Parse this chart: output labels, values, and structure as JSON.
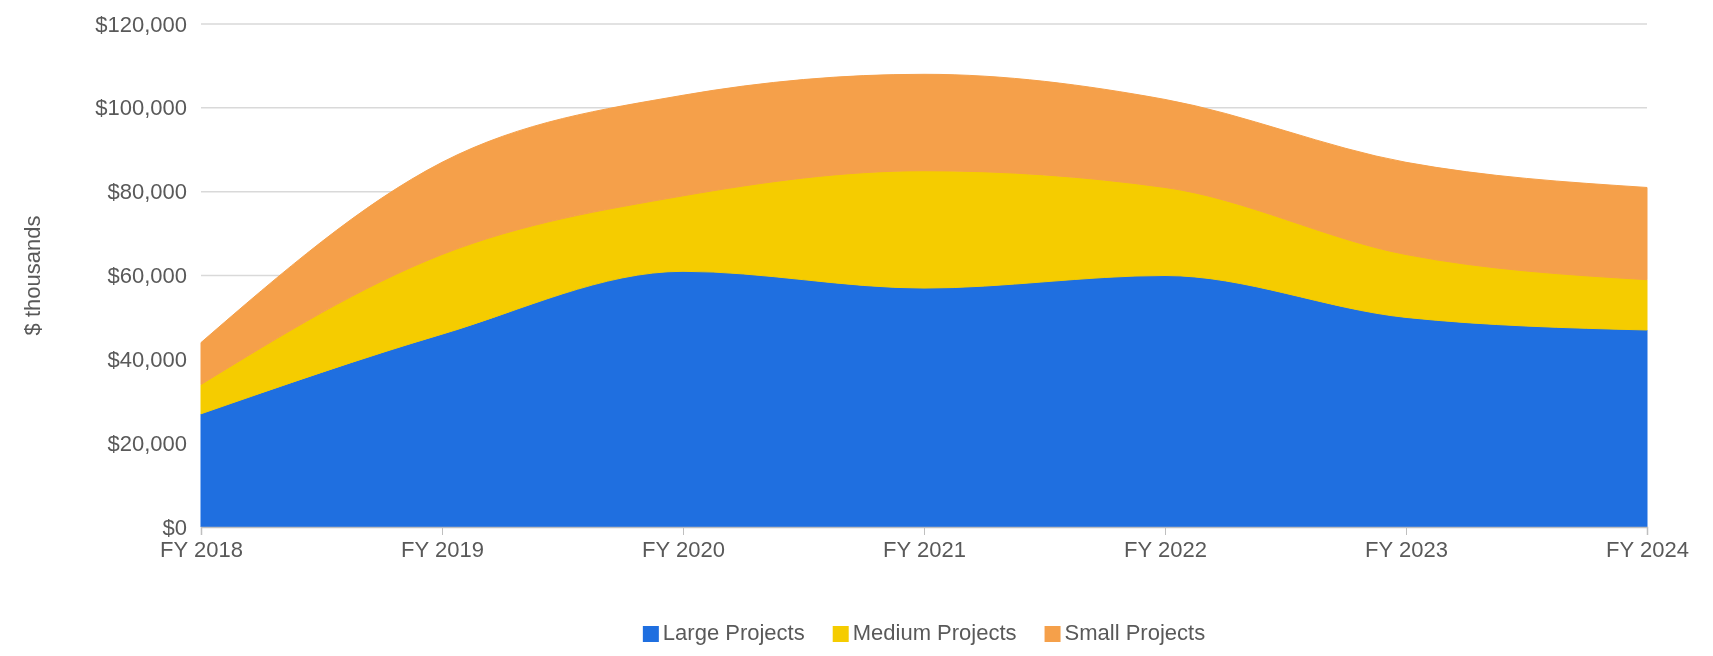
{
  "chart_data": {
    "type": "area",
    "stacked": true,
    "ylabel": "$ thousands",
    "categories": [
      "FY 2018",
      "FY 2019",
      "FY 2020",
      "FY 2021",
      "FY 2022",
      "FY 2023",
      "FY 2024"
    ],
    "series": [
      {
        "name": "Large Projects",
        "color": "#1f6fe0",
        "values": [
          27000,
          46000,
          61000,
          57000,
          60000,
          50000,
          47000
        ]
      },
      {
        "name": "Medium Projects",
        "color": "#f5cc00",
        "values": [
          7000,
          19000,
          18000,
          28000,
          21000,
          15000,
          12000
        ]
      },
      {
        "name": "Small Projects",
        "color": "#f5a04a",
        "values": [
          10000,
          22000,
          24000,
          23000,
          21000,
          22000,
          22000
        ]
      }
    ],
    "ylim": [
      0,
      120000
    ],
    "yticks": [
      {
        "value": 0,
        "label": "$0"
      },
      {
        "value": 20000,
        "label": "$20,000"
      },
      {
        "value": 40000,
        "label": "$40,000"
      },
      {
        "value": 60000,
        "label": "$60,000"
      },
      {
        "value": 80000,
        "label": "$80,000"
      },
      {
        "value": 100000,
        "label": "$100,000"
      },
      {
        "value": 120000,
        "label": "$120,000"
      }
    ],
    "grid": "y",
    "legend": "bottom"
  }
}
